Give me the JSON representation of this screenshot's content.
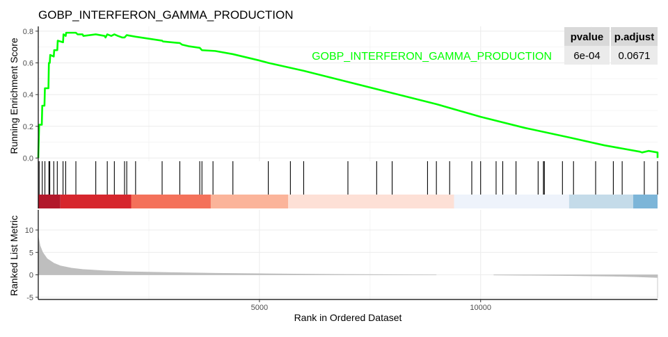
{
  "chart_data": {
    "type": "line",
    "title": "GOBP_INTERFERON_GAMMA_PRODUCTION",
    "series_label": "GOBP_INTERFERON_GAMMA_PRODUCTION",
    "xlabel": "Rank in Ordered Dataset",
    "xlim": [
      0,
      14000
    ],
    "x_ticks": [
      5000,
      10000
    ],
    "x_tick_labels": [
      "5000",
      "10000"
    ],
    "es_panel": {
      "ylabel": "Running Enrichment Score",
      "ylim": [
        -0.02,
        0.83
      ],
      "y_ticks": [
        0.0,
        0.2,
        0.4,
        0.6,
        0.8
      ],
      "y_tick_labels": [
        "0.0",
        "0.2",
        "0.4",
        "0.6",
        "0.8"
      ],
      "line_color": "#00ff00",
      "points": [
        [
          0,
          0.0
        ],
        [
          20,
          0.21
        ],
        [
          80,
          0.21
        ],
        [
          90,
          0.33
        ],
        [
          140,
          0.33
        ],
        [
          150,
          0.44
        ],
        [
          230,
          0.44
        ],
        [
          240,
          0.6
        ],
        [
          260,
          0.6
        ],
        [
          270,
          0.65
        ],
        [
          350,
          0.64
        ],
        [
          360,
          0.68
        ],
        [
          430,
          0.68
        ],
        [
          440,
          0.74
        ],
        [
          560,
          0.73
        ],
        [
          570,
          0.78
        ],
        [
          620,
          0.77
        ],
        [
          630,
          0.79
        ],
        [
          850,
          0.79
        ],
        [
          890,
          0.78
        ],
        [
          1000,
          0.78
        ],
        [
          1020,
          0.77
        ],
        [
          1300,
          0.78
        ],
        [
          1500,
          0.77
        ],
        [
          1520,
          0.76
        ],
        [
          1560,
          0.78
        ],
        [
          1650,
          0.77
        ],
        [
          1720,
          0.78
        ],
        [
          1800,
          0.77
        ],
        [
          1900,
          0.76
        ],
        [
          1950,
          0.76
        ],
        [
          2000,
          0.775
        ],
        [
          2200,
          0.765
        ],
        [
          2800,
          0.74
        ],
        [
          2820,
          0.735
        ],
        [
          3200,
          0.725
        ],
        [
          3250,
          0.715
        ],
        [
          3400,
          0.705
        ],
        [
          3650,
          0.695
        ],
        [
          3700,
          0.68
        ],
        [
          4000,
          0.675
        ],
        [
          4400,
          0.655
        ],
        [
          5000,
          0.615
        ],
        [
          5200,
          0.6
        ],
        [
          6000,
          0.55
        ],
        [
          7000,
          0.48
        ],
        [
          8000,
          0.41
        ],
        [
          9000,
          0.34
        ],
        [
          10000,
          0.26
        ],
        [
          11000,
          0.19
        ],
        [
          12000,
          0.13
        ],
        [
          12800,
          0.08
        ],
        [
          13000,
          0.07
        ],
        [
          13600,
          0.04
        ],
        [
          13650,
          0.035
        ],
        [
          13800,
          0.045
        ],
        [
          14000,
          0.035
        ],
        [
          14400,
          0.03
        ],
        [
          14500,
          0.02
        ],
        [
          14900,
          0.0
        ]
      ]
    },
    "hits": [
      20,
      90,
      150,
      240,
      260,
      350,
      430,
      560,
      620,
      850,
      1300,
      1560,
      1720,
      1950,
      2000,
      2200,
      2800,
      3200,
      3650,
      3700,
      3950,
      4400,
      5200,
      5700,
      6000,
      7000,
      7650,
      8000,
      8800,
      9000,
      9300,
      9800,
      10000,
      10350,
      10500,
      10800,
      11300,
      11420,
      11440,
      11850,
      12100,
      12600,
      13000,
      13200,
      13700,
      14000
    ],
    "color_bar": [
      {
        "from": 0,
        "to": 500,
        "color": "#b2182b"
      },
      {
        "from": 500,
        "to": 2100,
        "color": "#d6262d"
      },
      {
        "from": 2100,
        "to": 3900,
        "color": "#f4715a"
      },
      {
        "from": 3900,
        "to": 5650,
        "color": "#fbb49a"
      },
      {
        "from": 5650,
        "to": 9400,
        "color": "#fde0d6"
      },
      {
        "from": 9400,
        "to": 12000,
        "color": "#eef3fb"
      },
      {
        "from": 12000,
        "to": 13450,
        "color": "#c4dbe9"
      },
      {
        "from": 13450,
        "to": 14650,
        "color": "#7cb5d8"
      },
      {
        "from": 14650,
        "to": 14950,
        "color": "#3a87c2"
      }
    ],
    "rank_panel": {
      "ylabel": "Ranked List Metric",
      "ylim": [
        -5.5,
        14.5
      ],
      "y_ticks": [
        -5,
        0,
        5,
        10
      ],
      "y_tick_labels": [
        "-5",
        "0",
        "5",
        "10"
      ],
      "fill_color": "#bebebe",
      "gap_x": [
        9400,
        10250
      ],
      "profile": [
        [
          0,
          8.5
        ],
        [
          40,
          6.5
        ],
        [
          100,
          5.0
        ],
        [
          200,
          3.6
        ],
        [
          350,
          2.6
        ],
        [
          500,
          2.0
        ],
        [
          750,
          1.5
        ],
        [
          1000,
          1.2
        ],
        [
          1500,
          0.9
        ],
        [
          2000,
          0.7
        ],
        [
          3000,
          0.5
        ],
        [
          4000,
          0.35
        ],
        [
          5000,
          0.25
        ],
        [
          6000,
          0.15
        ],
        [
          7000,
          0.08
        ],
        [
          8000,
          0.03
        ],
        [
          9000,
          0.0
        ],
        [
          10300,
          -0.03
        ],
        [
          11000,
          -0.08
        ],
        [
          12000,
          -0.16
        ],
        [
          13000,
          -0.3
        ],
        [
          13500,
          -0.42
        ],
        [
          14000,
          -0.6
        ],
        [
          14400,
          -0.9
        ],
        [
          14600,
          -1.3
        ],
        [
          14750,
          -2.0
        ],
        [
          14850,
          -3.0
        ],
        [
          14900,
          -4.2
        ],
        [
          14930,
          -5.2
        ]
      ]
    },
    "table": {
      "headers": [
        "pvalue",
        "p.adjust"
      ],
      "rows": [
        [
          "6e-04",
          "0.0671"
        ]
      ]
    }
  }
}
